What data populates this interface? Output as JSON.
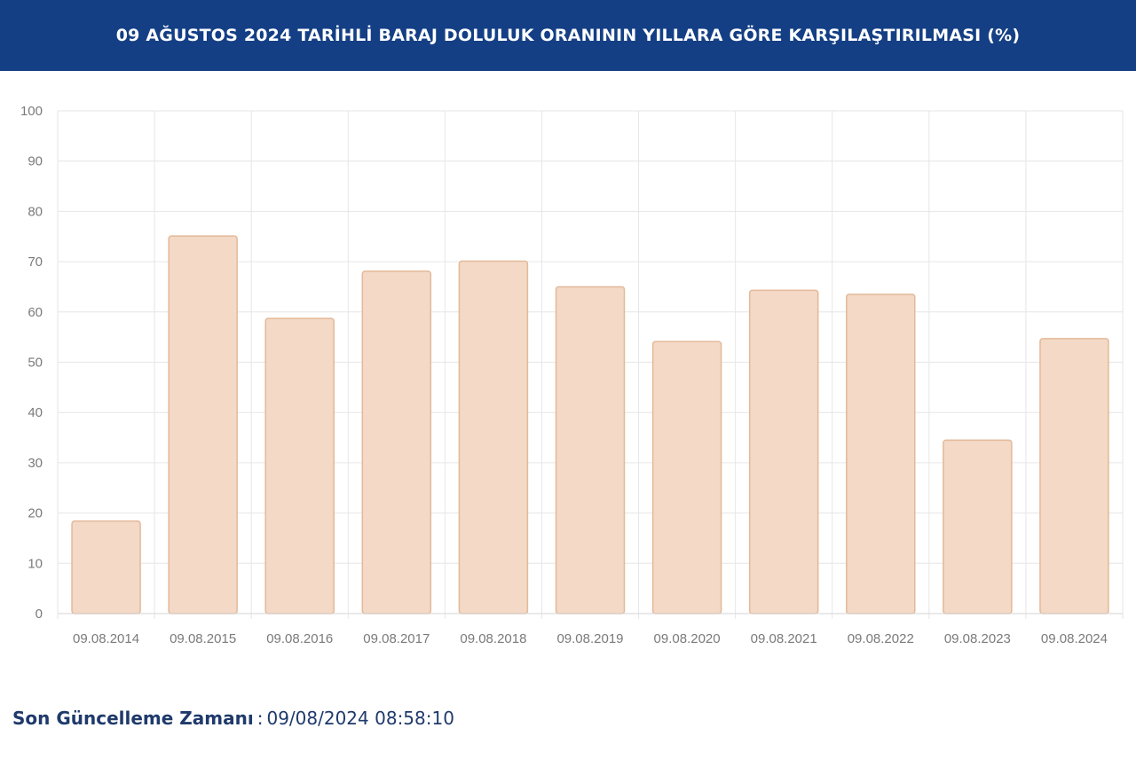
{
  "header": {
    "title": "09 AĞUSTOS 2024 TARİHLİ BARAJ DOLULUK ORANININ YILLARA GÖRE KARŞILAŞTIRILMASI (%)"
  },
  "chart_data": {
    "type": "bar",
    "title": "09 AĞUSTOS 2024 TARİHLİ BARAJ DOLULUK ORANININ YILLARA GÖRE KARŞILAŞTIRILMASI (%)",
    "categories": [
      "09.08.2014",
      "09.08.2015",
      "09.08.2016",
      "09.08.2017",
      "09.08.2018",
      "09.08.2019",
      "09.08.2020",
      "09.08.2021",
      "09.08.2022",
      "09.08.2023",
      "09.08.2024"
    ],
    "values": [
      18.4,
      75.1,
      58.7,
      68.1,
      70.1,
      65.0,
      54.1,
      64.3,
      63.5,
      34.5,
      54.7
    ],
    "xlabel": "",
    "ylabel": "",
    "ylim": [
      0,
      100
    ],
    "yticks": [
      0,
      10,
      20,
      30,
      40,
      50,
      60,
      70,
      80,
      90,
      100
    ],
    "grid": true,
    "legend": "none",
    "colors": {
      "bar_fill": "#f3d9c6",
      "bar_stroke": "#e3b999",
      "grid": "#e6e6e6",
      "tick_text": "#7a7a7a"
    }
  },
  "footer": {
    "label": "Son Güncelleme Zamanı",
    "separator": ":",
    "value": "09/08/2024 08:58:10"
  }
}
